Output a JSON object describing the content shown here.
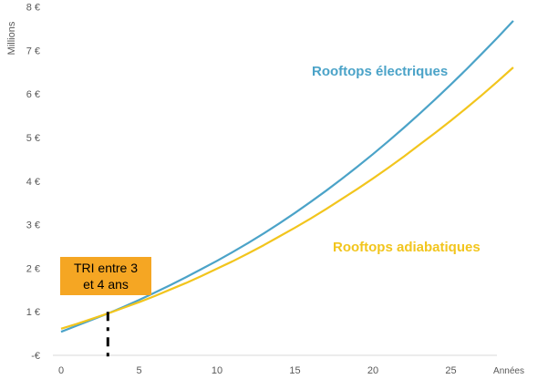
{
  "chart_data": {
    "type": "line",
    "ylabel": "Millions",
    "x_unit_label": "Années",
    "x_ticks": [
      0,
      5,
      10,
      15,
      20,
      25
    ],
    "xlim": [
      0,
      30
    ],
    "y_ticks": [
      "-€",
      "1 €",
      "2 €",
      "3 €",
      "4 €",
      "5 €",
      "6 €",
      "7 €",
      "8 €"
    ],
    "ylim": [
      0,
      8
    ],
    "grid": false,
    "series": [
      {
        "name": "Rooftops électriques",
        "color": "#4ba3c8",
        "x": [
          0,
          1,
          2,
          3,
          4,
          5,
          6,
          7,
          8,
          9,
          10,
          11,
          12,
          13,
          14,
          15,
          16,
          17,
          18,
          19,
          20,
          21,
          22,
          23,
          24,
          25,
          26,
          27,
          28,
          29
        ],
        "y": [
          0.54,
          0.68,
          0.82,
          0.96,
          1.11,
          1.27,
          1.44,
          1.61,
          1.79,
          1.98,
          2.17,
          2.37,
          2.58,
          2.8,
          3.03,
          3.27,
          3.52,
          3.78,
          4.05,
          4.33,
          4.62,
          4.92,
          5.23,
          5.55,
          5.88,
          6.22,
          6.57,
          6.93,
          7.3,
          7.68
        ]
      },
      {
        "name": "Rooftops adiabatiques",
        "color": "#f2c51d",
        "x": [
          0,
          1,
          2,
          3,
          4,
          5,
          6,
          7,
          8,
          9,
          10,
          11,
          12,
          13,
          14,
          15,
          16,
          17,
          18,
          19,
          20,
          21,
          22,
          23,
          24,
          25,
          26,
          27,
          28,
          29
        ],
        "y": [
          0.61,
          0.72,
          0.84,
          0.96,
          1.09,
          1.22,
          1.36,
          1.51,
          1.66,
          1.82,
          1.99,
          2.16,
          2.34,
          2.53,
          2.73,
          2.93,
          3.14,
          3.36,
          3.59,
          3.82,
          4.06,
          4.31,
          4.57,
          4.84,
          5.11,
          5.39,
          5.68,
          5.98,
          6.29,
          6.61
        ]
      }
    ],
    "annotations": {
      "tri_line1": "TRI entre 3",
      "tri_line2": "et 4 ans",
      "tri_x": 3
    }
  }
}
